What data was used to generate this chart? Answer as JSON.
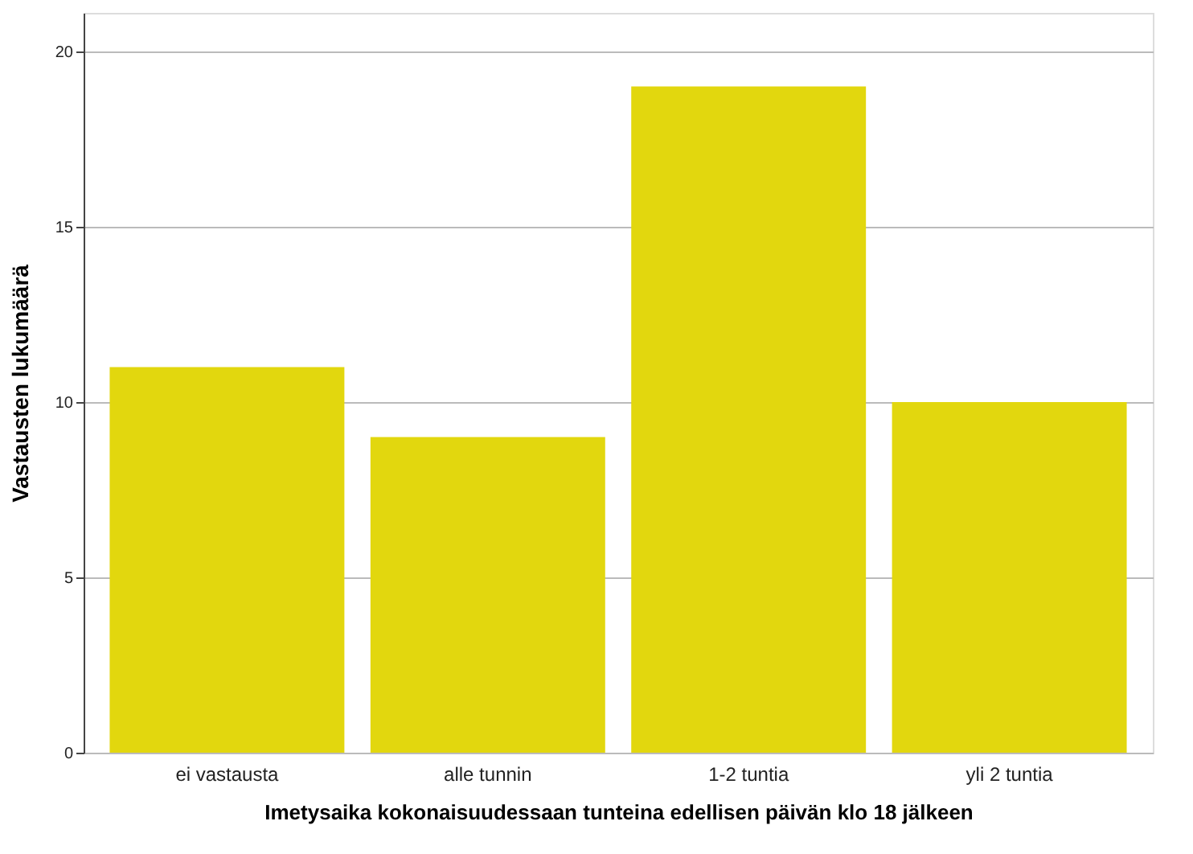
{
  "chart_data": {
    "type": "bar",
    "xlabel": "Imetysaika kokonaisuudessaan tunteina edellisen päivän klo 18 jälkeen",
    "ylabel": "Vastausten lukumäärä",
    "categories": [
      "ei vastausta",
      "alle tunnin",
      "1-2 tuntia",
      "yli 2 tuntia"
    ],
    "values": [
      11,
      9,
      19,
      10
    ],
    "color": "#e2d70e",
    "ylim": [
      0,
      21.1
    ],
    "yticks": [
      0,
      5,
      10,
      15,
      20
    ],
    "grid": "y"
  }
}
